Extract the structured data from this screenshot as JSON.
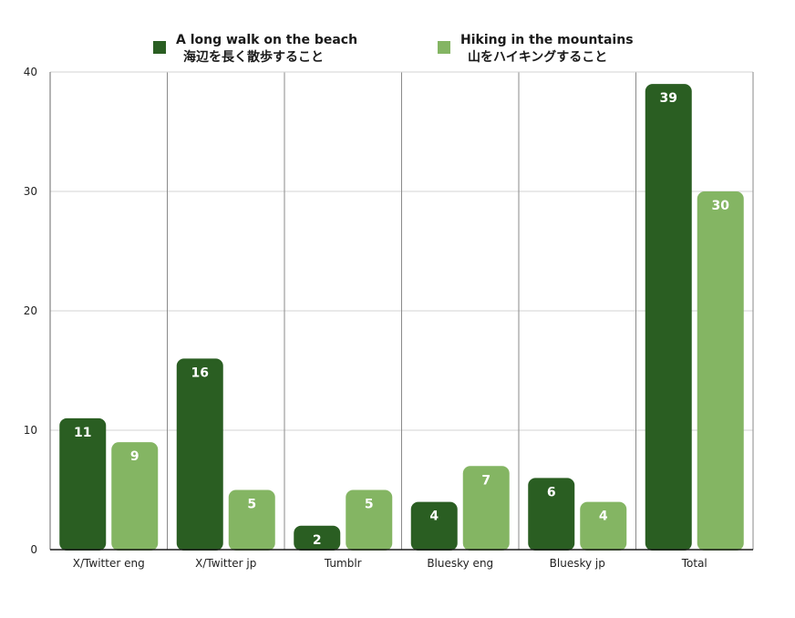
{
  "chart_data": {
    "type": "bar",
    "categories": [
      "X/Twitter eng",
      "X/Twitter jp",
      "Tumblr",
      "Bluesky eng",
      "Bluesky jp",
      "Total"
    ],
    "series": [
      {
        "name": "A long walk on the beach\n海辺を長く散歩すること",
        "name_lines": [
          "A long walk on the beach",
          "海辺を長く散歩すること"
        ],
        "color": "#2a5e22",
        "values": [
          11,
          16,
          2,
          4,
          6,
          39
        ]
      },
      {
        "name": "Hiking in the mountains\n山をハイキングすること",
        "name_lines": [
          "Hiking in the mountains",
          "山をハイキングすること"
        ],
        "color": "#84b563",
        "values": [
          9,
          5,
          5,
          7,
          4,
          30
        ]
      }
    ],
    "title": "",
    "xlabel": "",
    "ylabel": "",
    "ylim": [
      0,
      40
    ],
    "yticks": [
      0,
      10,
      20,
      30,
      40
    ],
    "grid": true,
    "legend_position": "top",
    "data_labels": true
  }
}
